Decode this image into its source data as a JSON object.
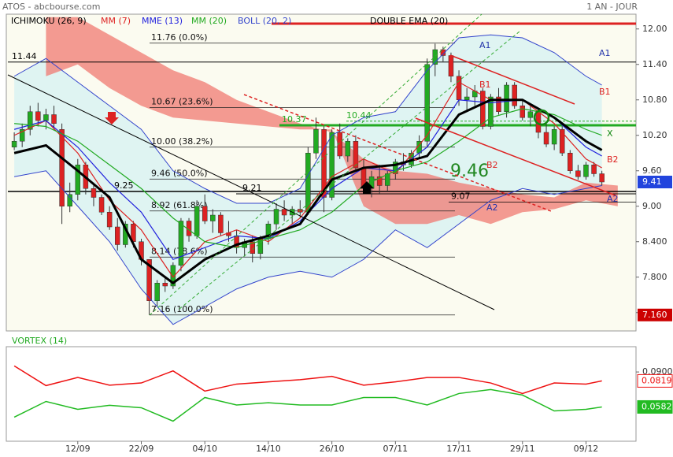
{
  "chart_data": [
    {
      "type": "candlestick",
      "title": "ATOS - abcbourse.com",
      "period": "1 AN - JOUR",
      "xlim": [
        -1,
        78
      ],
      "ylim": [
        6.89,
        12.25
      ],
      "yticks": [
        {
          "value": 12,
          "label": "12.00"
        },
        {
          "value": 11.4,
          "label": "11.40"
        },
        {
          "value": 10.8,
          "label": "10.80"
        },
        {
          "value": 10.2,
          "label": "10.20"
        },
        {
          "value": 9.6,
          "label": "9.60"
        },
        {
          "value": 9,
          "label": "9.00"
        },
        {
          "value": 8.4,
          "label": "8.400"
        },
        {
          "value": 7.8,
          "label": "7.800"
        },
        {
          "value": 7.2,
          "label": "7.200"
        }
      ],
      "up_color": "#22aa22",
      "down_color": "#dd2222",
      "candles": [
        [
          10.0,
          10.25,
          9.95,
          10.1
        ],
        [
          10.1,
          10.4,
          10.0,
          10.3
        ],
        [
          10.3,
          10.7,
          10.2,
          10.6
        ],
        [
          10.6,
          10.75,
          10.35,
          10.45
        ],
        [
          10.45,
          10.65,
          10.3,
          10.55
        ],
        [
          10.55,
          10.7,
          10.3,
          10.4
        ],
        [
          10.3,
          10.4,
          8.7,
          9.0
        ],
        [
          9.0,
          9.4,
          8.9,
          9.2
        ],
        [
          9.2,
          9.8,
          9.1,
          9.7
        ],
        [
          9.7,
          9.75,
          9.2,
          9.3
        ],
        [
          9.3,
          9.4,
          9.0,
          9.15
        ],
        [
          9.15,
          9.2,
          8.85,
          8.9
        ],
        [
          8.9,
          9.0,
          8.6,
          8.65
        ],
        [
          8.65,
          8.8,
          8.25,
          8.35
        ],
        [
          8.35,
          8.75,
          8.3,
          8.7
        ],
        [
          8.7,
          8.75,
          8.3,
          8.4
        ],
        [
          8.4,
          8.45,
          8.0,
          8.1
        ],
        [
          8.1,
          8.1,
          7.16,
          7.4
        ],
        [
          7.4,
          7.75,
          7.3,
          7.7
        ],
        [
          7.7,
          7.8,
          7.55,
          7.65
        ],
        [
          7.65,
          8.05,
          7.6,
          8.0
        ],
        [
          8.0,
          8.8,
          7.9,
          8.75
        ],
        [
          8.75,
          8.8,
          8.4,
          8.5
        ],
        [
          8.5,
          9.1,
          8.45,
          9.0
        ],
        [
          9.0,
          9.2,
          8.7,
          8.75
        ],
        [
          8.75,
          8.95,
          8.55,
          8.85
        ],
        [
          8.85,
          8.9,
          8.5,
          8.55
        ],
        [
          8.55,
          8.75,
          8.4,
          8.5
        ],
        [
          8.5,
          8.6,
          8.2,
          8.3
        ],
        [
          8.3,
          8.45,
          8.15,
          8.4
        ],
        [
          8.4,
          8.5,
          8.05,
          8.2
        ],
        [
          8.2,
          8.5,
          8.1,
          8.45
        ],
        [
          8.45,
          8.75,
          8.35,
          8.7
        ],
        [
          8.7,
          9.05,
          8.6,
          8.95
        ],
        [
          8.95,
          9.1,
          8.75,
          8.85
        ],
        [
          8.85,
          9.0,
          8.7,
          8.95
        ],
        [
          8.95,
          9.1,
          8.8,
          8.9
        ],
        [
          8.9,
          10.0,
          8.85,
          9.9
        ],
        [
          9.9,
          10.5,
          9.8,
          10.3
        ],
        [
          10.3,
          10.35,
          8.9,
          9.15
        ],
        [
          9.15,
          10.3,
          9.1,
          10.25
        ],
        [
          10.25,
          10.4,
          9.8,
          9.85
        ],
        [
          9.85,
          10.15,
          9.75,
          10.1
        ],
        [
          10.1,
          10.2,
          9.6,
          9.65
        ],
        [
          9.65,
          9.8,
          9.2,
          9.3
        ],
        [
          9.3,
          9.6,
          9.15,
          9.5
        ],
        [
          9.5,
          9.7,
          9.2,
          9.35
        ],
        [
          9.35,
          9.6,
          9.25,
          9.55
        ],
        [
          9.55,
          9.8,
          9.45,
          9.75
        ],
        [
          9.75,
          9.9,
          9.6,
          9.7
        ],
        [
          9.7,
          9.95,
          9.65,
          9.9
        ],
        [
          9.9,
          10.2,
          9.8,
          10.1
        ],
        [
          10.1,
          11.5,
          10.0,
          11.4
        ],
        [
          11.4,
          11.75,
          11.2,
          11.65
        ],
        [
          11.65,
          11.7,
          11.45,
          11.55
        ],
        [
          11.55,
          11.6,
          11.1,
          11.2
        ],
        [
          11.2,
          11.3,
          10.7,
          10.8
        ],
        [
          10.8,
          11.0,
          10.6,
          10.85
        ],
        [
          10.85,
          11.05,
          10.7,
          10.95
        ],
        [
          10.95,
          11.0,
          10.3,
          10.35
        ],
        [
          10.35,
          10.9,
          10.3,
          10.85
        ],
        [
          10.85,
          11.0,
          10.55,
          10.6
        ],
        [
          10.6,
          11.1,
          10.5,
          11.05
        ],
        [
          11.05,
          11.1,
          10.65,
          10.7
        ],
        [
          10.7,
          10.8,
          10.45,
          10.5
        ],
        [
          10.5,
          10.7,
          10.35,
          10.6
        ],
        [
          10.6,
          10.65,
          10.15,
          10.25
        ],
        [
          10.25,
          10.4,
          10.0,
          10.05
        ],
        [
          10.05,
          10.35,
          9.95,
          10.3
        ],
        [
          10.3,
          10.35,
          9.85,
          9.9
        ],
        [
          9.9,
          9.95,
          9.55,
          9.6
        ],
        [
          9.6,
          9.7,
          9.45,
          9.5
        ],
        [
          9.5,
          9.75,
          9.45,
          9.7
        ],
        [
          9.7,
          9.75,
          9.5,
          9.55
        ],
        [
          9.55,
          9.6,
          9.35,
          9.41
        ]
      ],
      "low_marker": {
        "value": 7.16,
        "label": "7.160"
      },
      "ichimoku": {
        "name": "ICHIMOKU (26, 9)",
        "color": "#f07a72",
        "x": [
          4,
          8,
          12,
          16,
          20,
          24,
          28,
          32,
          36,
          40,
          44,
          48,
          52,
          56,
          60,
          64,
          68,
          72,
          76
        ],
        "span_a": [
          12.2,
          12.2,
          11.9,
          11.6,
          11.3,
          11.1,
          10.8,
          10.6,
          10.4,
          10.25,
          9.8,
          9.6,
          9.55,
          9.4,
          9.3,
          9.2,
          9.15,
          9.4,
          9.35
        ],
        "span_b": [
          11.2,
          11.4,
          11.0,
          10.7,
          10.5,
          10.45,
          10.4,
          10.35,
          10.3,
          10.3,
          9.0,
          8.7,
          8.7,
          8.85,
          8.7,
          8.9,
          8.95,
          9.1,
          9.0
        ]
      },
      "indicator_x": [
        0,
        4,
        8,
        12,
        16,
        20,
        24,
        28,
        32,
        36,
        40,
        44,
        48,
        52,
        56,
        60,
        64,
        68,
        72,
        74
      ],
      "series": [
        {
          "name": "MM (7)",
          "color": "#dd2222",
          "values": [
            10.2,
            10.45,
            9.9,
            9.1,
            8.6,
            7.8,
            8.4,
            8.6,
            8.4,
            8.8,
            9.5,
            9.8,
            9.55,
            10.2,
            11.1,
            10.8,
            10.8,
            10.4,
            9.8,
            9.65
          ]
        },
        {
          "name": "MME (13)",
          "color": "#2222dd",
          "values": [
            10.3,
            10.45,
            10.0,
            9.4,
            8.9,
            8.1,
            8.3,
            8.5,
            8.45,
            8.75,
            9.3,
            9.65,
            9.6,
            10.0,
            10.8,
            10.75,
            10.8,
            10.5,
            10.0,
            9.85
          ]
        },
        {
          "name": "MM (20)",
          "color": "#22aa22",
          "values": [
            10.4,
            10.35,
            10.1,
            9.7,
            9.3,
            8.8,
            8.4,
            8.3,
            8.45,
            8.6,
            8.9,
            9.35,
            9.6,
            9.75,
            10.1,
            10.5,
            10.65,
            10.55,
            10.3,
            10.2
          ]
        },
        {
          "name": "BOLL (20, 2)",
          "color": "#3344cc",
          "upper": [
            11.2,
            11.5,
            11.1,
            10.7,
            10.3,
            9.6,
            9.3,
            9.05,
            9.05,
            9.3,
            10.2,
            10.5,
            10.6,
            11.3,
            11.85,
            11.9,
            11.85,
            11.6,
            11.2,
            11.05
          ],
          "lower": [
            9.5,
            9.6,
            9.0,
            8.4,
            7.6,
            7.0,
            7.3,
            7.6,
            7.8,
            7.9,
            7.8,
            8.1,
            8.6,
            8.3,
            8.7,
            9.1,
            9.3,
            9.2,
            9.3,
            9.35
          ]
        },
        {
          "name": "DOUBLE EMA (20)",
          "color": "#000000",
          "values": [
            9.9,
            10.03,
            9.6,
            9.15,
            8.1,
            7.7,
            8.1,
            8.35,
            8.5,
            8.7,
            9.45,
            9.65,
            9.7,
            9.85,
            10.55,
            10.8,
            10.8,
            10.5,
            10.1,
            9.95
          ]
        }
      ],
      "fib_levels": [
        {
          "value": 11.76,
          "label": "11.76  (0.0%)"
        },
        {
          "value": 10.67,
          "label": "10.67  (23.6%)"
        },
        {
          "value": 10.0,
          "label": "10.00  (38.2%)"
        },
        {
          "value": 9.46,
          "label": "9.46  (50.0%)"
        },
        {
          "value": 8.92,
          "label": "8.92  (61.8%)"
        },
        {
          "value": 8.14,
          "label": "8.14  (78.6%)"
        },
        {
          "value": 7.16,
          "label": "7.16  (100.0%)"
        }
      ],
      "levels": [
        {
          "value": 11.44,
          "color": "#000000"
        },
        {
          "value": 9.25,
          "color": "#000000"
        },
        {
          "value": 9.21,
          "color": "#000000"
        },
        {
          "value": 9.07,
          "color": "#000000"
        },
        {
          "value": 10.37,
          "color": "#22aa22"
        },
        {
          "value": 10.44,
          "color": "#22aa22"
        },
        {
          "value": 12.09,
          "color": "#dd2222"
        }
      ],
      "annotations": [
        "A1",
        "A1",
        "B1",
        "B1",
        "B2",
        "B2",
        "X",
        "A2",
        "A2",
        "9.46"
      ]
    },
    {
      "type": "line",
      "title": "VORTEX (14)",
      "xlim": [
        -1,
        78
      ],
      "ylim": [
        0.027,
        0.113
      ],
      "yticks": [
        {
          "value": 0.09,
          "label": "0.0900"
        }
      ],
      "xticks": [
        {
          "value": 8,
          "label": "12/09"
        },
        {
          "value": 16,
          "label": "22/09"
        },
        {
          "value": 24,
          "label": "04/10"
        },
        {
          "value": 32,
          "label": "14/10"
        },
        {
          "value": 40,
          "label": "26/10"
        },
        {
          "value": 48,
          "label": "07/11"
        },
        {
          "value": 56,
          "label": "17/11"
        },
        {
          "value": 64,
          "label": "29/11"
        },
        {
          "value": 72,
          "label": "09/12"
        }
      ],
      "x": [
        0,
        4,
        8,
        12,
        16,
        20,
        24,
        28,
        32,
        36,
        40,
        44,
        48,
        52,
        56,
        60,
        64,
        68,
        72,
        74
      ],
      "series": [
        {
          "color": "#ee1111",
          "values": [
            0.0955,
            0.0776,
            0.085,
            0.078,
            0.08,
            0.091,
            0.0726,
            0.079,
            0.081,
            0.083,
            0.086,
            0.078,
            0.081,
            0.085,
            0.085,
            0.08,
            0.0704,
            0.08,
            0.079,
            0.0819
          ]
        },
        {
          "color": "#22bb22",
          "values": [
            0.0489,
            0.0632,
            0.056,
            0.0597,
            0.0575,
            0.0453,
            0.0668,
            0.06,
            0.062,
            0.06,
            0.06,
            0.0668,
            0.0668,
            0.06,
            0.0704,
            0.074,
            0.069,
            0.0546,
            0.056,
            0.0582
          ]
        }
      ]
    }
  ]
}
